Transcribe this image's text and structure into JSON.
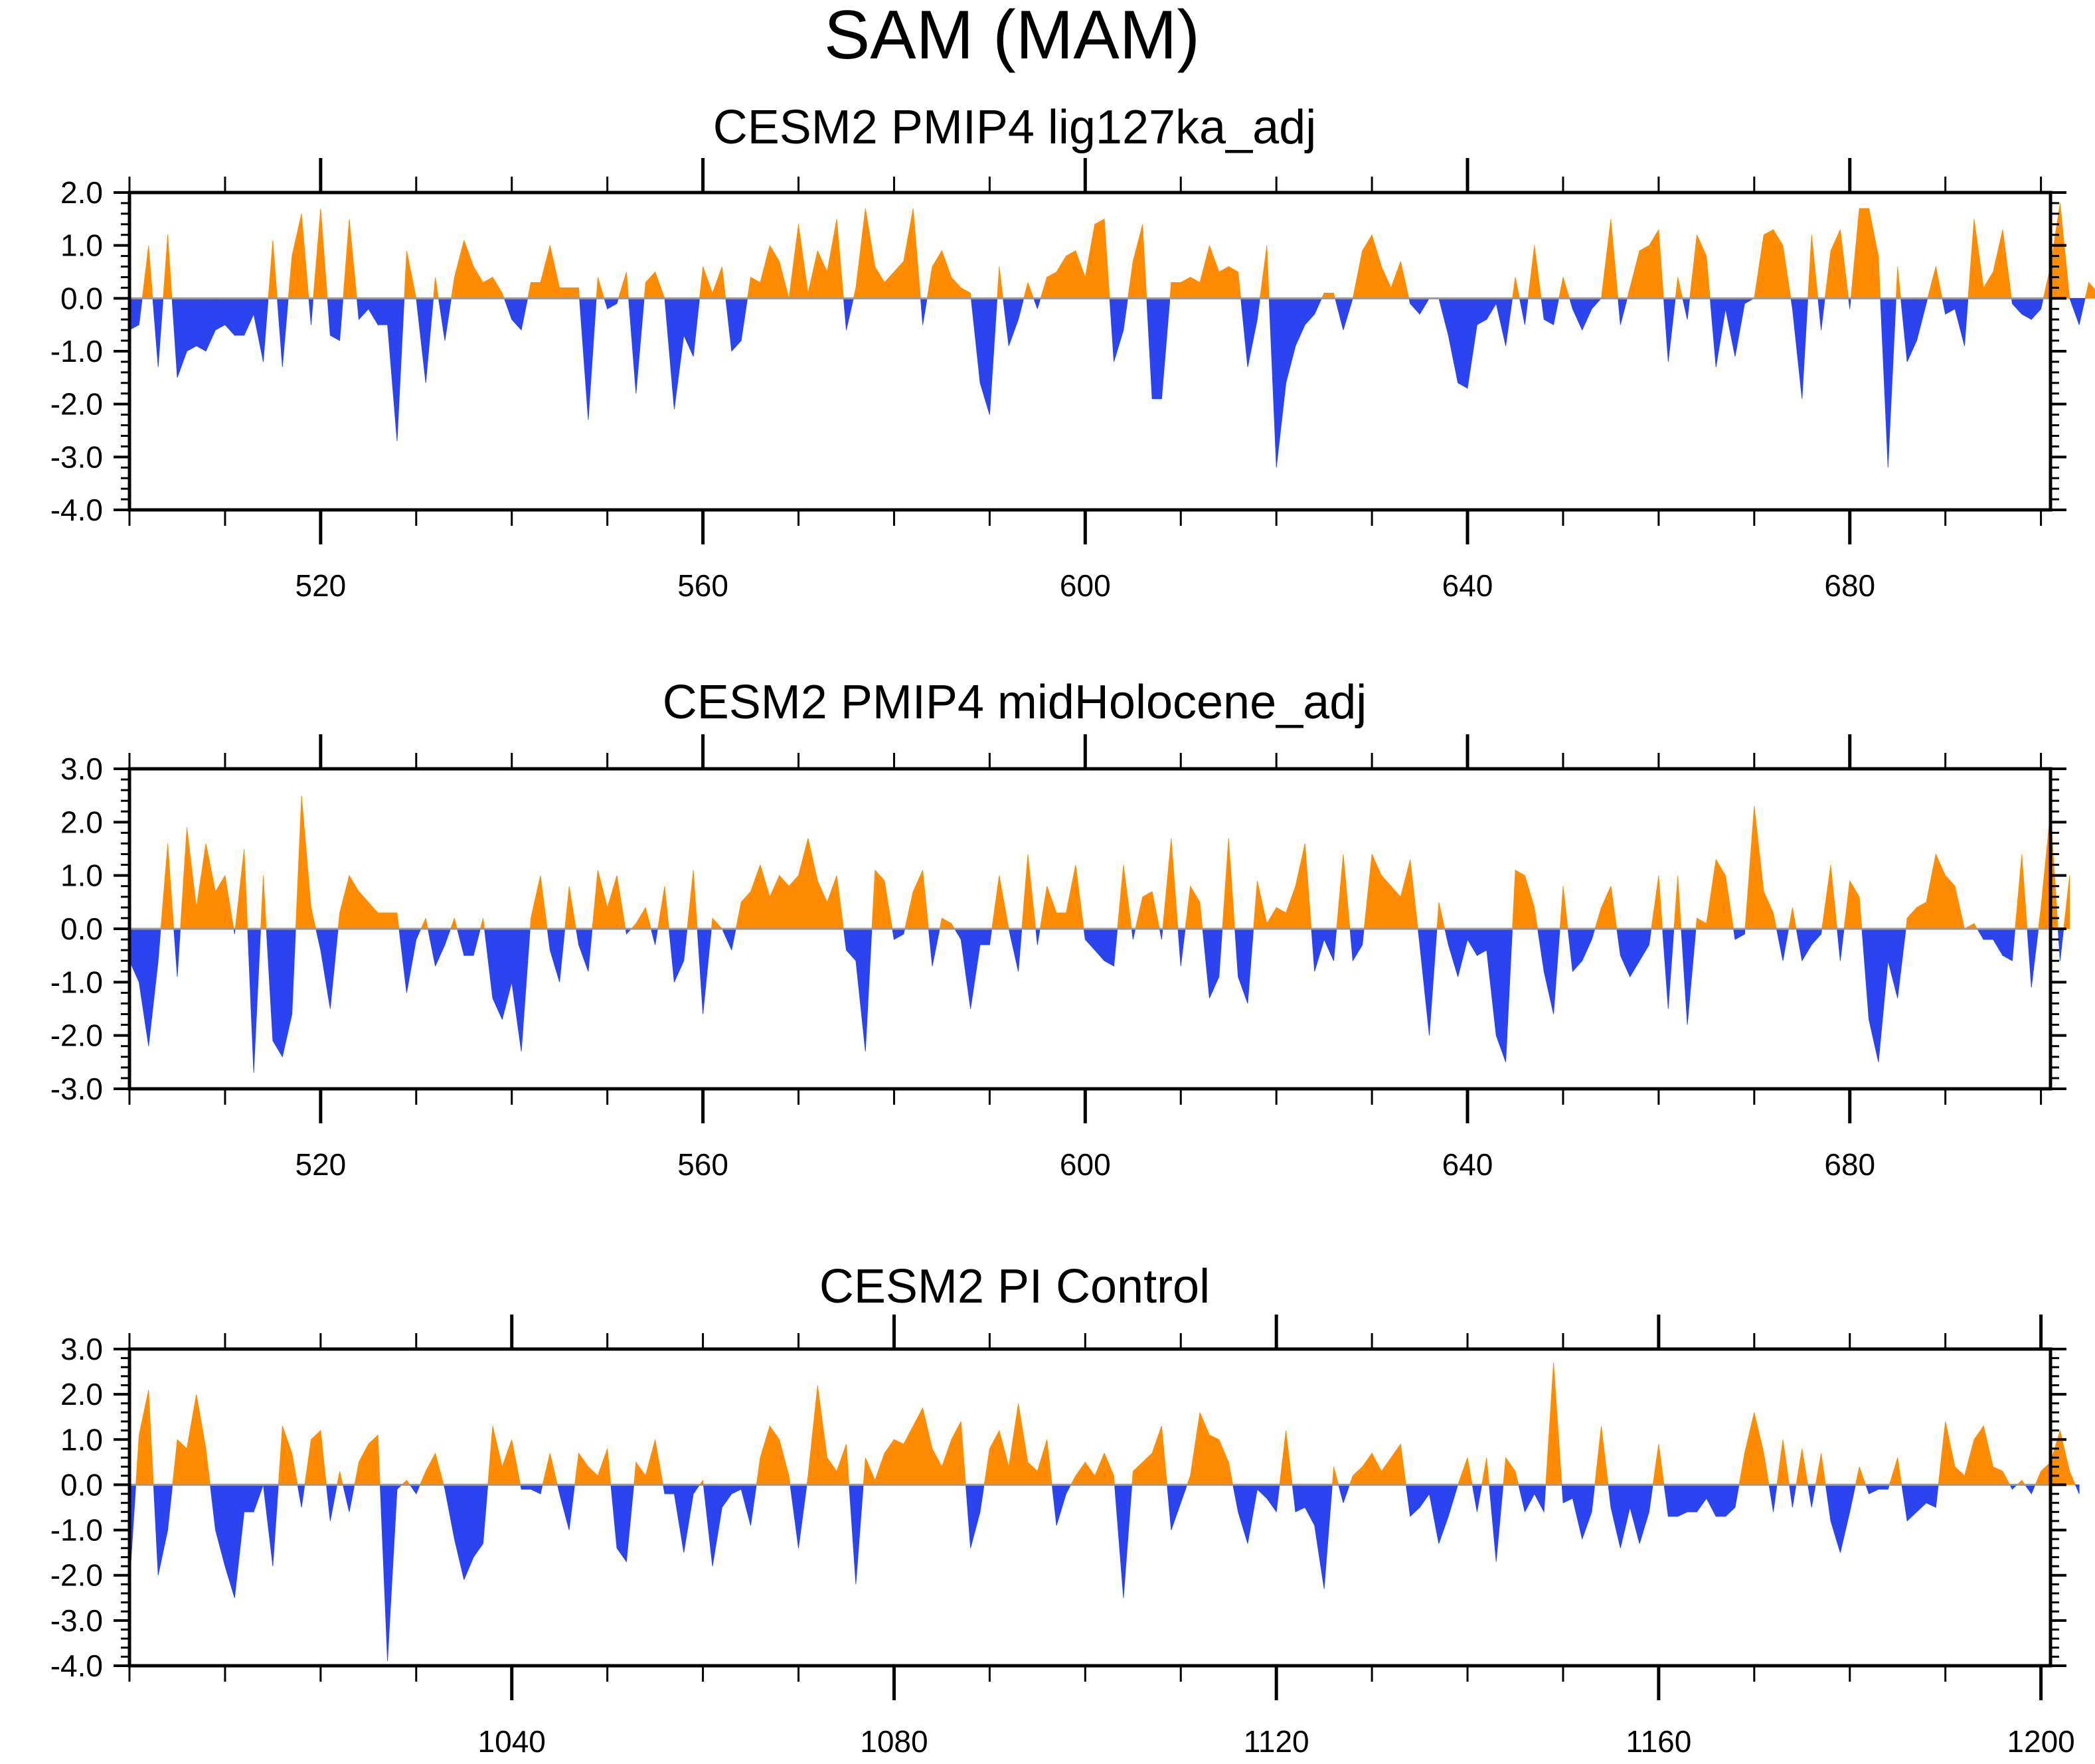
{
  "title": "SAM (MAM)",
  "colors": {
    "positive": "#ff8c00",
    "negative": "#2b44ef",
    "zero_line": "#999999",
    "axis": "#000000"
  },
  "chart_data": [
    {
      "type": "area",
      "title": "CESM2 PMIP4 lig127ka_adj",
      "xlim": [
        500,
        701
      ],
      "ylim": [
        -4.0,
        2.0
      ],
      "ytick_step": 1.0,
      "yticks": [
        -4.0,
        -3.0,
        -2.0,
        -1.0,
        0.0,
        1.0,
        2.0
      ],
      "ytick_labels": [
        "-4.0",
        "-3.0",
        "-2.0",
        "-1.0",
        "0.0",
        "1.0",
        "2.0"
      ],
      "xticks": [
        520,
        560,
        600,
        640,
        680
      ],
      "xtick_labels": [
        "520",
        "560",
        "600",
        "640",
        "680"
      ],
      "x_start": 500,
      "values": [
        -0.6,
        -0.5,
        1.0,
        -1.3,
        1.2,
        -1.5,
        -1.0,
        -0.9,
        -1.0,
        -0.6,
        -0.5,
        -0.7,
        -0.7,
        -0.3,
        -1.2,
        1.1,
        -1.3,
        0.8,
        1.6,
        -0.5,
        1.7,
        -0.7,
        -0.8,
        1.5,
        -0.4,
        -0.2,
        -0.5,
        -0.5,
        -2.7,
        0.9,
        0.0,
        -1.6,
        0.4,
        -0.8,
        0.4,
        1.1,
        0.6,
        0.3,
        0.4,
        0.1,
        -0.4,
        -0.6,
        0.3,
        0.3,
        1.0,
        0.2,
        0.2,
        0.2,
        -2.3,
        0.4,
        -0.2,
        -0.1,
        0.5,
        -1.8,
        0.3,
        0.5,
        0.0,
        -2.1,
        -0.7,
        -1.1,
        0.6,
        0.1,
        0.6,
        -1.0,
        -0.8,
        0.4,
        0.3,
        1.0,
        0.7,
        0.0,
        1.4,
        0.1,
        0.9,
        0.5,
        1.5,
        -0.6,
        0.2,
        1.7,
        0.6,
        0.3,
        0.5,
        0.7,
        1.7,
        -0.5,
        0.6,
        0.9,
        0.4,
        0.2,
        0.1,
        -1.6,
        -2.2,
        0.6,
        -0.9,
        -0.4,
        0.3,
        -0.2,
        0.4,
        0.5,
        0.8,
        0.9,
        0.4,
        1.4,
        1.5,
        -1.2,
        -0.6,
        0.7,
        1.4,
        -1.9,
        -1.9,
        0.3,
        0.3,
        0.4,
        0.3,
        1.0,
        0.5,
        0.6,
        0.5,
        -1.3,
        -0.4,
        1.0,
        -3.2,
        -1.6,
        -0.9,
        -0.5,
        -0.3,
        0.1,
        0.1,
        -0.6,
        0.0,
        0.9,
        1.2,
        0.6,
        0.2,
        0.7,
        -0.1,
        -0.3,
        0.0,
        0.0,
        -0.7,
        -1.6,
        -1.7,
        -0.5,
        -0.4,
        -0.1,
        -0.9,
        0.4,
        -0.5,
        1.0,
        -0.4,
        -0.5,
        0.4,
        -0.2,
        -0.6,
        -0.2,
        0.0,
        1.5,
        -0.5,
        0.2,
        0.9,
        1.0,
        1.3,
        -1.2,
        0.4,
        -0.4,
        1.2,
        0.8,
        -1.3,
        -0.2,
        -1.1,
        -0.1,
        0.0,
        1.2,
        1.3,
        1.0,
        -0.2,
        -1.9,
        1.2,
        -0.6,
        0.9,
        1.3,
        -0.2,
        1.7,
        1.7,
        0.8,
        -3.2,
        0.6,
        -1.2,
        -0.8,
        -0.1,
        0.6,
        -0.3,
        -0.2,
        -0.9,
        1.5,
        0.2,
        0.5,
        1.3,
        -0.1,
        -0.3,
        -0.4,
        -0.2,
        0.6,
        1.8,
        0.0,
        -0.5,
        0.3,
        0.1,
        -0.9
      ]
    },
    {
      "type": "area",
      "title": "CESM2 PMIP4 midHolocene_adj",
      "xlim": [
        500,
        701
      ],
      "ylim": [
        -3.0,
        3.0
      ],
      "ytick_step": 1.0,
      "yticks": [
        -3.0,
        -2.0,
        -1.0,
        0.0,
        1.0,
        2.0,
        3.0
      ],
      "ytick_labels": [
        "-3.0",
        "-2.0",
        "-1.0",
        "0.0",
        "1.0",
        "2.0",
        "3.0"
      ],
      "xticks": [
        520,
        560,
        600,
        640,
        680
      ],
      "xtick_labels": [
        "520",
        "560",
        "600",
        "640",
        "680"
      ],
      "x_start": 500,
      "values": [
        -0.6,
        -1.0,
        -2.2,
        -0.6,
        1.6,
        -0.9,
        1.9,
        0.4,
        1.6,
        0.7,
        1.0,
        -0.1,
        1.5,
        -2.7,
        1.0,
        -2.1,
        -2.4,
        -1.6,
        2.5,
        0.4,
        -0.4,
        -1.5,
        0.3,
        1.0,
        0.7,
        0.5,
        0.3,
        0.3,
        0.3,
        -1.2,
        -0.2,
        0.2,
        -0.7,
        -0.3,
        0.2,
        -0.5,
        -0.5,
        0.2,
        -1.3,
        -1.7,
        -1.0,
        -2.3,
        0.2,
        1.0,
        -0.4,
        -1.0,
        0.8,
        -0.3,
        -0.8,
        1.1,
        0.4,
        1.0,
        -0.1,
        0.1,
        0.4,
        -0.3,
        0.8,
        -1.0,
        -0.6,
        1.1,
        -1.6,
        0.2,
        0.0,
        -0.4,
        0.5,
        0.7,
        1.2,
        0.6,
        1.0,
        0.8,
        1.0,
        1.7,
        0.9,
        0.5,
        1.0,
        -0.4,
        -0.6,
        -2.3,
        1.1,
        0.9,
        -0.2,
        -0.1,
        0.7,
        1.1,
        -0.7,
        0.2,
        0.1,
        -0.2,
        -1.5,
        -0.3,
        -0.3,
        1.0,
        0.0,
        -0.8,
        1.4,
        -0.3,
        0.8,
        0.3,
        0.3,
        1.2,
        -0.2,
        -0.4,
        -0.6,
        -0.7,
        1.2,
        -0.2,
        0.6,
        0.7,
        -0.2,
        1.7,
        -0.7,
        0.8,
        0.5,
        -1.3,
        -0.9,
        1.7,
        -0.9,
        -1.4,
        0.9,
        0.1,
        0.4,
        0.3,
        0.8,
        1.6,
        -0.8,
        -0.2,
        -0.6,
        1.4,
        -0.6,
        -0.3,
        1.4,
        1.0,
        0.8,
        0.6,
        1.3,
        -0.3,
        -2.0,
        0.5,
        -0.3,
        -0.9,
        -0.2,
        -0.5,
        -0.4,
        -2.0,
        -2.5,
        1.1,
        1.0,
        0.4,
        -0.8,
        -1.6,
        0.8,
        -0.8,
        -0.6,
        -0.2,
        0.4,
        0.8,
        -0.5,
        -0.9,
        -0.6,
        -0.3,
        1.0,
        -1.5,
        1.0,
        -1.8,
        0.2,
        0.1,
        1.3,
        1.0,
        -0.2,
        -0.1,
        2.3,
        0.7,
        0.3,
        -0.6,
        0.4,
        -0.6,
        -0.3,
        -0.1,
        1.2,
        -0.6,
        0.9,
        0.6,
        -1.7,
        -2.5,
        -0.6,
        -1.3,
        0.2,
        0.4,
        0.5,
        1.4,
        1.0,
        0.8,
        0.0,
        0.1,
        -0.2,
        -0.2,
        -0.5,
        -0.6,
        1.4,
        -1.1,
        0.4,
        2.2,
        -0.6,
        1.0
      ]
    },
    {
      "type": "area",
      "title": "CESM2 PI Control",
      "xlim": [
        1000,
        1201
      ],
      "ylim": [
        -4.0,
        3.0
      ],
      "ytick_step": 1.0,
      "yticks": [
        -4.0,
        -3.0,
        -2.0,
        -1.0,
        0.0,
        1.0,
        2.0,
        3.0
      ],
      "ytick_labels": [
        "-4.0",
        "-3.0",
        "-2.0",
        "-1.0",
        "0.0",
        "1.0",
        "2.0",
        "3.0"
      ],
      "xticks": [
        1040,
        1080,
        1120,
        1160,
        1200
      ],
      "xtick_labels": [
        "1040",
        "1080",
        "1120",
        "1160",
        "1200"
      ],
      "x_start": 1000,
      "values": [
        -2.2,
        1.1,
        2.1,
        -2.0,
        -1.0,
        1.0,
        0.8,
        2.0,
        0.8,
        -1.0,
        -1.8,
        -2.5,
        -0.6,
        -0.6,
        0.0,
        -1.8,
        1.3,
        0.7,
        -0.5,
        1.0,
        1.2,
        -0.8,
        0.3,
        -0.6,
        0.5,
        0.9,
        1.1,
        -3.9,
        -0.1,
        0.1,
        -0.2,
        0.3,
        0.7,
        -0.1,
        -1.2,
        -2.1,
        -1.6,
        -1.3,
        1.3,
        0.4,
        1.0,
        -0.1,
        -0.1,
        -0.2,
        0.7,
        -0.2,
        -1.0,
        0.7,
        0.4,
        0.2,
        0.8,
        -1.4,
        -1.7,
        0.5,
        0.2,
        1.0,
        -0.2,
        -0.2,
        -1.5,
        -0.2,
        0.1,
        -1.8,
        -0.5,
        -0.2,
        -0.1,
        -0.9,
        0.6,
        1.3,
        1.0,
        0.2,
        -1.4,
        0.2,
        2.2,
        0.6,
        0.3,
        0.9,
        -2.2,
        0.6,
        0.1,
        0.7,
        1.0,
        0.9,
        1.3,
        1.7,
        0.8,
        0.4,
        1.0,
        1.4,
        -1.4,
        -0.6,
        0.8,
        1.2,
        0.4,
        1.8,
        0.5,
        0.3,
        1.0,
        -0.9,
        -0.2,
        0.2,
        0.5,
        0.2,
        0.7,
        0.2,
        -2.5,
        0.3,
        0.5,
        0.7,
        1.3,
        -1.0,
        -0.4,
        0.2,
        1.6,
        1.1,
        1.0,
        0.5,
        -0.6,
        -1.3,
        -0.1,
        -0.3,
        -0.6,
        1.2,
        -0.6,
        -0.5,
        -0.9,
        -2.3,
        0.4,
        -0.4,
        0.2,
        0.4,
        0.7,
        0.3,
        0.6,
        0.9,
        -0.7,
        -0.5,
        -0.2,
        -1.3,
        -0.7,
        0.0,
        0.6,
        -0.6,
        0.6,
        -1.7,
        0.6,
        0.3,
        -0.6,
        -0.2,
        -0.6,
        2.7,
        -0.4,
        -0.3,
        -1.2,
        -0.6,
        1.3,
        -0.5,
        -1.4,
        -0.5,
        -1.3,
        -0.6,
        0.9,
        -0.7,
        -0.7,
        -0.6,
        -0.6,
        -0.3,
        -0.7,
        -0.7,
        -0.5,
        0.7,
        1.6,
        0.7,
        -0.6,
        1.0,
        -0.5,
        0.8,
        -0.5,
        0.7,
        -0.8,
        -1.5,
        -0.6,
        0.4,
        -0.2,
        -0.1,
        -0.1,
        0.6,
        -0.8,
        -0.6,
        -0.4,
        -0.5,
        1.4,
        0.4,
        0.2,
        1.0,
        1.3,
        0.4,
        0.3,
        -0.1,
        0.1,
        -0.2,
        0.3,
        0.5,
        1.2,
        0.3,
        -0.2
      ]
    }
  ]
}
